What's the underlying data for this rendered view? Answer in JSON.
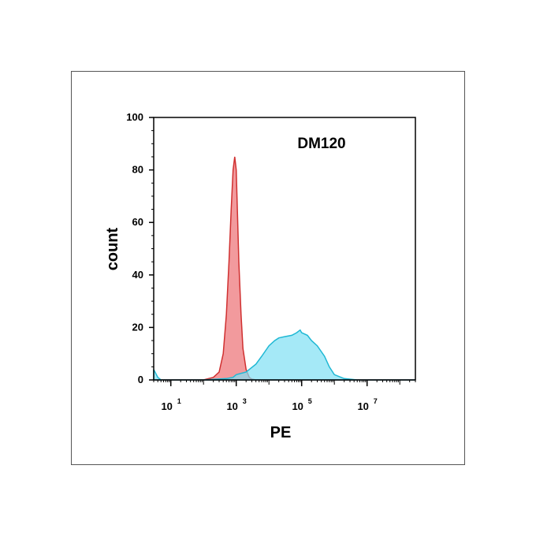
{
  "chart_data": {
    "type": "area",
    "title": "DM120",
    "xlabel": "PE",
    "ylabel": "count",
    "x_scale": "log",
    "xlim": [
      3,
      300000000
    ],
    "ylim": [
      0,
      100
    ],
    "x_ticks": [
      {
        "value": 10,
        "base": "10",
        "exp": "1"
      },
      {
        "value": 1000,
        "base": "10",
        "exp": "3"
      },
      {
        "value": 100000,
        "base": "10",
        "exp": "5"
      },
      {
        "value": 10000000,
        "base": "10",
        "exp": "7"
      }
    ],
    "y_ticks": [
      "0",
      "20",
      "40",
      "60",
      "80",
      "100"
    ],
    "grid": false,
    "series": [
      {
        "color": "#f0888c",
        "stroke": "#d03030",
        "x": [
          3,
          100,
          200,
          300,
          400,
          500,
          600,
          700,
          800,
          900,
          1000,
          1100,
          1200,
          1400,
          1600,
          2000,
          2500,
          3000,
          4000,
          300000000
        ],
        "y": [
          0,
          0,
          1,
          3,
          10,
          25,
          45,
          65,
          80,
          85,
          80,
          62,
          45,
          25,
          12,
          4,
          1,
          0.3,
          0,
          0
        ]
      },
      {
        "color": "#7fe0f4",
        "stroke": "#1fb8d4",
        "x": [
          3,
          4,
          5,
          8,
          100,
          500,
          800,
          1000,
          2000,
          4000,
          6000,
          10000,
          15000,
          20000,
          30000,
          50000,
          70000,
          90000,
          100000,
          150000,
          200000,
          300000,
          500000,
          700000,
          1000000,
          2000000,
          5000000,
          300000000
        ],
        "y": [
          4,
          1,
          0,
          0,
          0,
          0.5,
          1,
          2,
          3,
          6,
          9,
          13,
          15,
          16,
          16.5,
          17,
          18,
          19,
          18,
          17,
          15,
          13,
          9,
          5,
          2,
          0.5,
          0,
          0
        ]
      }
    ]
  }
}
